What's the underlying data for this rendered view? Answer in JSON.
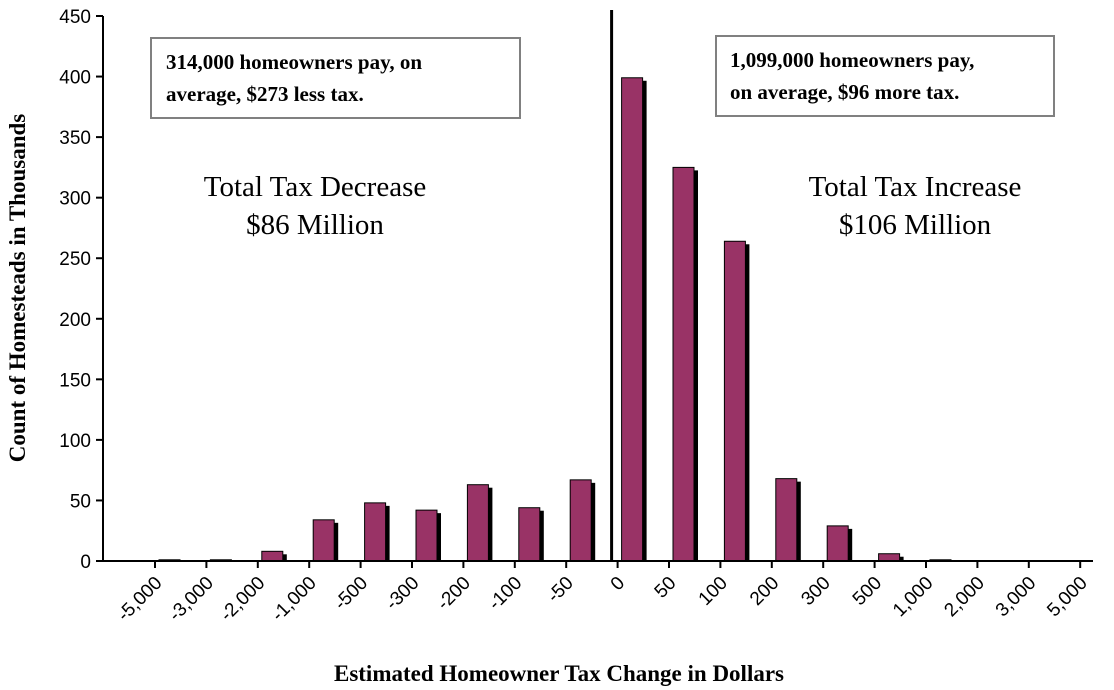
{
  "colors": {
    "bar": "#993366",
    "shadow": "#000000",
    "axis": "#000000",
    "box_border": "#808080"
  },
  "chart_data": {
    "type": "bar",
    "categories": [
      "-5,000",
      "-3,000",
      "-2,000",
      "-1,000",
      "-500",
      "-300",
      "-200",
      "-100",
      "-50",
      "0",
      "50",
      "100",
      "200",
      "300",
      "500",
      "1,000",
      "2,000",
      "3,000",
      "5,000"
    ],
    "values": [
      1,
      1,
      8,
      34,
      48,
      42,
      63,
      44,
      67,
      399,
      325,
      264,
      68,
      29,
      6,
      1,
      0,
      0,
      0
    ],
    "xlabel": "Estimated Homeowner Tax Change in Dollars",
    "ylabel": "Count of Homesteads in Thousands",
    "ylim": [
      0,
      450
    ],
    "yticks": [
      0,
      50,
      100,
      150,
      200,
      250,
      300,
      350,
      400,
      450
    ],
    "annotations": {
      "decrease_box": [
        "314,000 homeowners pay, on",
        "average, $273 less tax."
      ],
      "increase_box": [
        "1,099,000 homeowners pay,",
        "on average, $96 more tax."
      ],
      "decrease_total": [
        "Total Tax Decrease",
        "$86 Million"
      ],
      "increase_total": [
        "Total Tax Increase",
        "$106 Million"
      ]
    }
  }
}
